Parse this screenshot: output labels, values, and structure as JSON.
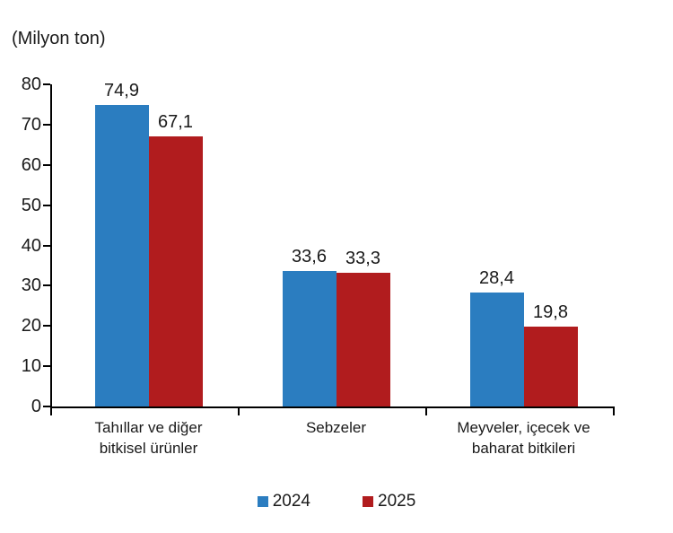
{
  "unit_label": "(Milyon ton)",
  "colors": {
    "series_2024": "#2B7DC0",
    "series_2025": "#B11C1E",
    "axis": "#000000",
    "text": "#1A1A1A",
    "background": "#FFFFFF"
  },
  "legend": {
    "items": [
      {
        "label": "2024",
        "color": "#2B7DC0"
      },
      {
        "label": "2025",
        "color": "#B11C1E"
      }
    ],
    "position": "bottom"
  },
  "chart_data": {
    "type": "bar",
    "title": "",
    "unit": "(Milyon ton)",
    "categories": [
      "Tahıllar ve diğer bitkisel ürünler",
      "Sebzeler",
      "Meyveler, içecek ve baharat bitkileri"
    ],
    "category_lines": [
      [
        "Tahıllar ve diğer",
        "bitkisel ürünler"
      ],
      [
        "Sebzeler"
      ],
      [
        "Meyveler, içecek ve",
        "baharat  bitkileri"
      ]
    ],
    "series": [
      {
        "name": "2024",
        "color": "#2B7DC0",
        "values": [
          74.9,
          33.6,
          28.4
        ],
        "value_labels": [
          "74,9",
          "33,6",
          "28,4"
        ]
      },
      {
        "name": "2025",
        "color": "#B11C1E",
        "values": [
          67.1,
          33.3,
          19.8
        ],
        "value_labels": [
          "67,1",
          "33,3",
          "19,8"
        ]
      }
    ],
    "ylim": [
      0,
      80
    ],
    "yticks": [
      0,
      10,
      20,
      30,
      40,
      50,
      60,
      70,
      80
    ],
    "ytick_labels": [
      "0",
      "10",
      "20",
      "30",
      "40",
      "50",
      "60",
      "70",
      "80"
    ],
    "grid": false,
    "legend_position": "bottom"
  }
}
